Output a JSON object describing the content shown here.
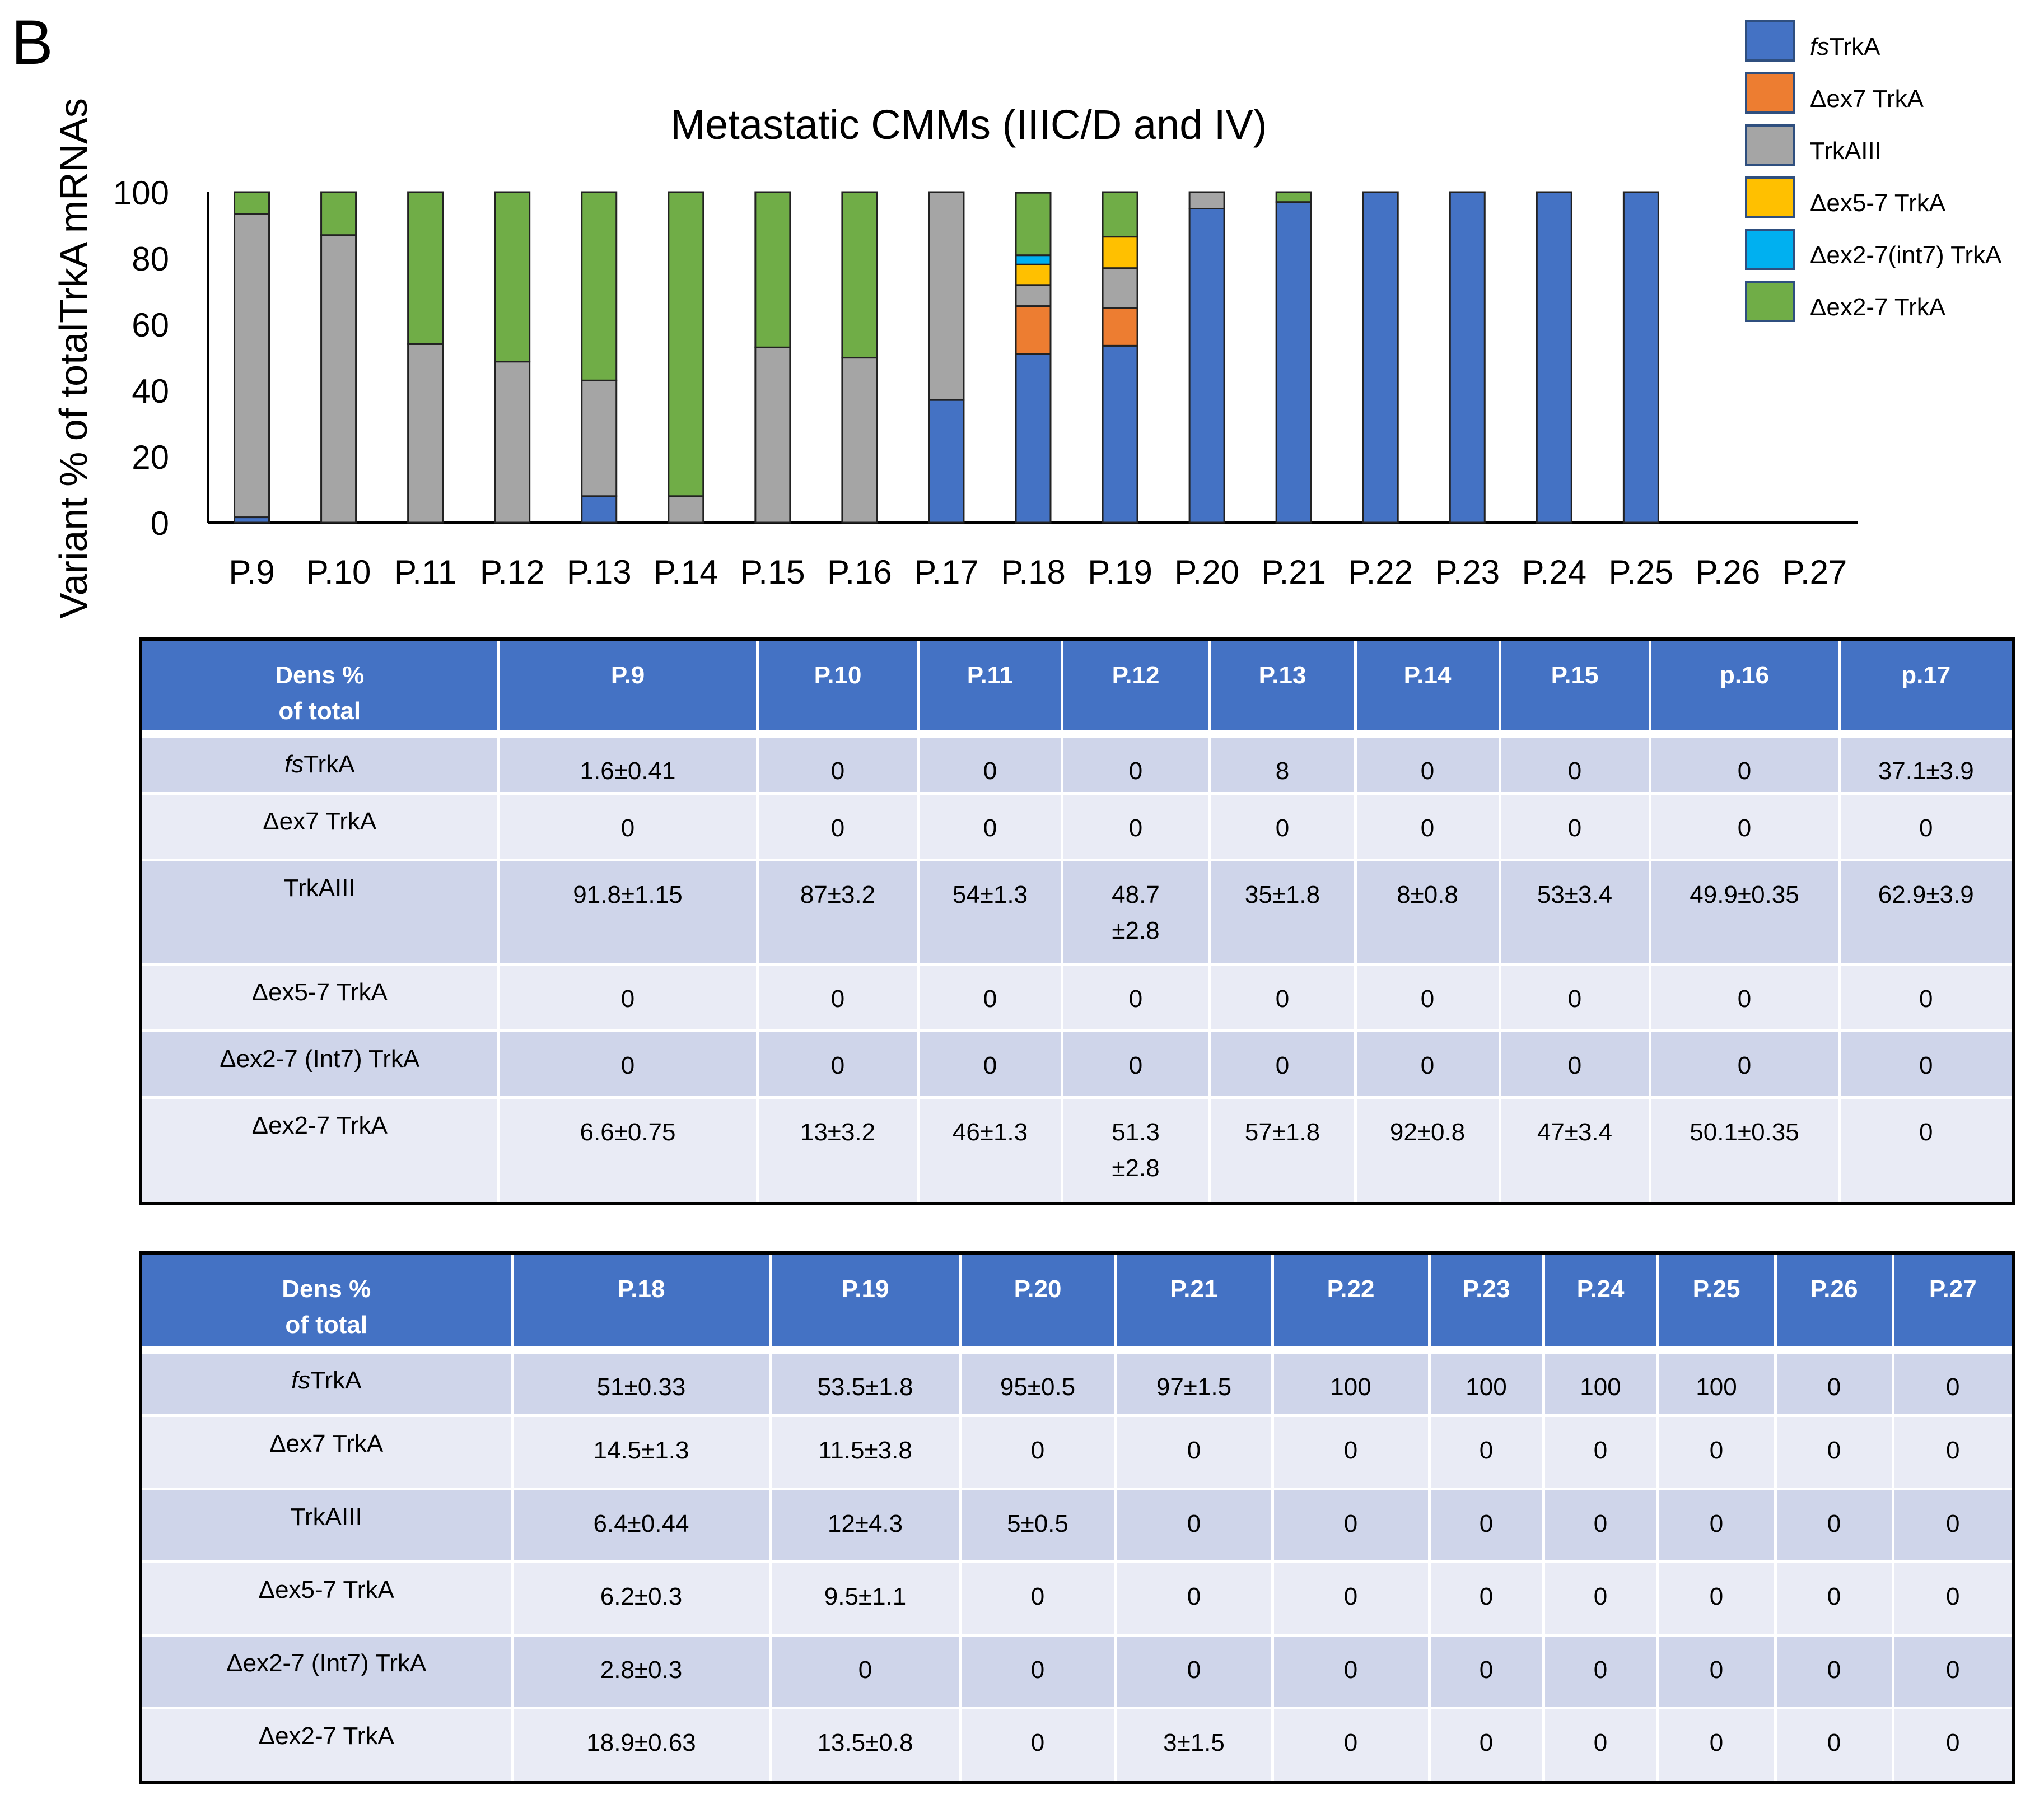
{
  "panel_letter": "B",
  "chart_data": {
    "type": "stacked-bar",
    "title": "Metastatic CMMs (IIIC/D and IV)",
    "ylabel": "Variant % of totalTrkA mRNAs",
    "xlabel": "",
    "ylim": [
      0,
      100
    ],
    "yticks": [
      "0",
      "20",
      "40",
      "60",
      "80",
      "100"
    ],
    "categories": [
      "P.9",
      "P.10",
      "P.11",
      "P.12",
      "P.13",
      "P.14",
      "P.15",
      "P.16",
      "P.17",
      "P.18",
      "P.19",
      "P.20",
      "P.21",
      "P.22",
      "P.23",
      "P.24",
      "P.25",
      "P.26",
      "P.27"
    ],
    "legend_position": "top-right",
    "series": [
      {
        "name_prefix": "fs",
        "name": "TrkA",
        "color": "#4472c4",
        "values": [
          1.6,
          0,
          0,
          0,
          8,
          0,
          0,
          0,
          37.1,
          51,
          53.5,
          95,
          97,
          100,
          100,
          100,
          100,
          0,
          0
        ]
      },
      {
        "name_prefix": "",
        "name": "Δex7 TrkA",
        "color": "#ed7d31",
        "values": [
          0,
          0,
          0,
          0,
          0,
          0,
          0,
          0,
          0,
          14.5,
          11.5,
          0,
          0,
          0,
          0,
          0,
          0,
          0,
          0
        ]
      },
      {
        "name_prefix": "",
        "name": "TrkAIII",
        "color": "#a5a5a5",
        "values": [
          91.8,
          87,
          54,
          48.7,
          35,
          8,
          53,
          49.9,
          62.9,
          6.4,
          12,
          5,
          0,
          0,
          0,
          0,
          0,
          0,
          0
        ]
      },
      {
        "name_prefix": "",
        "name": "Δex5-7 TrkA",
        "color": "#ffc000",
        "values": [
          0,
          0,
          0,
          0,
          0,
          0,
          0,
          0,
          0,
          6.2,
          9.5,
          0,
          0,
          0,
          0,
          0,
          0,
          0,
          0
        ]
      },
      {
        "name_prefix": "",
        "name": "Δex2-7(int7) TrkA",
        "color": "#00b0f0",
        "values": [
          0,
          0,
          0,
          0,
          0,
          0,
          0,
          0,
          0,
          2.8,
          0,
          0,
          0,
          0,
          0,
          0,
          0,
          0,
          0
        ]
      },
      {
        "name_prefix": "",
        "name": "Δex2-7 TrkA",
        "color": "#70ad47",
        "values": [
          6.6,
          13,
          46,
          51.3,
          57,
          92,
          47,
          50.1,
          0,
          18.9,
          13.5,
          0,
          3,
          0,
          0,
          0,
          0,
          0,
          0
        ]
      }
    ]
  },
  "tables": [
    {
      "header_line1": "Dens %",
      "header_line2": "of total",
      "columns": [
        "P.9",
        "P.10",
        "P.11",
        "P.12",
        "P.13",
        "P.14",
        "P.15",
        "p.16",
        "p.17"
      ],
      "rows": [
        {
          "prefix": "fs",
          "label": "TrkA",
          "cells": [
            [
              "1.6±0.41"
            ],
            [
              "0"
            ],
            [
              "0"
            ],
            [
              "0"
            ],
            [
              "8"
            ],
            [
              "0"
            ],
            [
              "0"
            ],
            [
              "0"
            ],
            [
              "37.1±3.9"
            ]
          ]
        },
        {
          "prefix": "",
          "label": "Δex7 TrkA",
          "cells": [
            [
              "0"
            ],
            [
              "0"
            ],
            [
              "0"
            ],
            [
              "0"
            ],
            [
              "0"
            ],
            [
              "0"
            ],
            [
              "0"
            ],
            [
              "0"
            ],
            [
              "0"
            ]
          ]
        },
        {
          "prefix": "",
          "label": "TrkAIII",
          "cells": [
            [
              "91.8±1.15"
            ],
            [
              "87±3.2"
            ],
            [
              "54±1.3"
            ],
            [
              "48.7",
              "±2.8"
            ],
            [
              "35±1.8"
            ],
            [
              "8±0.8"
            ],
            [
              "53±3.4"
            ],
            [
              "49.9±0.35"
            ],
            [
              "62.9±3.9"
            ]
          ]
        },
        {
          "prefix": "",
          "label": "Δex5-7 TrkA",
          "cells": [
            [
              "0"
            ],
            [
              "0"
            ],
            [
              "0"
            ],
            [
              "0"
            ],
            [
              "0"
            ],
            [
              "0"
            ],
            [
              "0"
            ],
            [
              "0"
            ],
            [
              "0"
            ]
          ]
        },
        {
          "prefix": "",
          "label": "Δex2-7 (Int7) TrkA",
          "cells": [
            [
              "0"
            ],
            [
              "0"
            ],
            [
              "0"
            ],
            [
              "0"
            ],
            [
              "0"
            ],
            [
              "0"
            ],
            [
              "0"
            ],
            [
              "0"
            ],
            [
              "0"
            ]
          ]
        },
        {
          "prefix": "",
          "label": "Δex2-7 TrkA",
          "cells": [
            [
              "6.6±0.75"
            ],
            [
              "13±3.2"
            ],
            [
              "46±1.3"
            ],
            [
              "51.3",
              "±2.8"
            ],
            [
              "57±1.8"
            ],
            [
              "92±0.8"
            ],
            [
              "47±3.4"
            ],
            [
              "50.1±0.35"
            ],
            [
              "0"
            ]
          ]
        }
      ]
    },
    {
      "header_line1": "Dens %",
      "header_line2": "of total",
      "columns": [
        "P.18",
        "P.19",
        "P.20",
        "P.21",
        "P.22",
        "P.23",
        "P.24",
        "P.25",
        "P.26",
        "P.27"
      ],
      "rows": [
        {
          "prefix": "fs",
          "label": "TrkA",
          "cells": [
            [
              "51±0.33"
            ],
            [
              "53.5±1.8"
            ],
            [
              "95±0.5"
            ],
            [
              "97±1.5"
            ],
            [
              "100"
            ],
            [
              "100"
            ],
            [
              "100"
            ],
            [
              "100"
            ],
            [
              "0"
            ],
            [
              "0"
            ]
          ]
        },
        {
          "prefix": "",
          "label": "Δex7 TrkA",
          "cells": [
            [
              "14.5±1.3"
            ],
            [
              "11.5±3.8"
            ],
            [
              "0"
            ],
            [
              "0"
            ],
            [
              "0"
            ],
            [
              "0"
            ],
            [
              "0"
            ],
            [
              "0"
            ],
            [
              "0"
            ],
            [
              "0"
            ]
          ]
        },
        {
          "prefix": "",
          "label": "TrkAIII",
          "cells": [
            [
              "6.4±0.44"
            ],
            [
              "12±4.3"
            ],
            [
              "5±0.5"
            ],
            [
              "0"
            ],
            [
              "0"
            ],
            [
              "0"
            ],
            [
              "0"
            ],
            [
              "0"
            ],
            [
              "0"
            ],
            [
              "0"
            ]
          ]
        },
        {
          "prefix": "",
          "label": "Δex5-7 TrkA",
          "cells": [
            [
              "6.2±0.3"
            ],
            [
              "9.5±1.1"
            ],
            [
              "0"
            ],
            [
              "0"
            ],
            [
              "0"
            ],
            [
              "0"
            ],
            [
              "0"
            ],
            [
              "0"
            ],
            [
              "0"
            ],
            [
              "0"
            ]
          ]
        },
        {
          "prefix": "",
          "label": "Δex2-7 (Int7) TrkA",
          "cells": [
            [
              "2.8±0.3"
            ],
            [
              "0"
            ],
            [
              "0"
            ],
            [
              "0"
            ],
            [
              "0"
            ],
            [
              "0"
            ],
            [
              "0"
            ],
            [
              "0"
            ],
            [
              "0"
            ],
            [
              "0"
            ]
          ]
        },
        {
          "prefix": "",
          "label": "Δex2-7 TrkA",
          "cells": [
            [
              "18.9±0.63"
            ],
            [
              "13.5±0.8"
            ],
            [
              "0"
            ],
            [
              "3±1.5"
            ],
            [
              "0"
            ],
            [
              "0"
            ],
            [
              "0"
            ],
            [
              "0"
            ],
            [
              "0"
            ],
            [
              "0"
            ]
          ]
        }
      ]
    }
  ]
}
